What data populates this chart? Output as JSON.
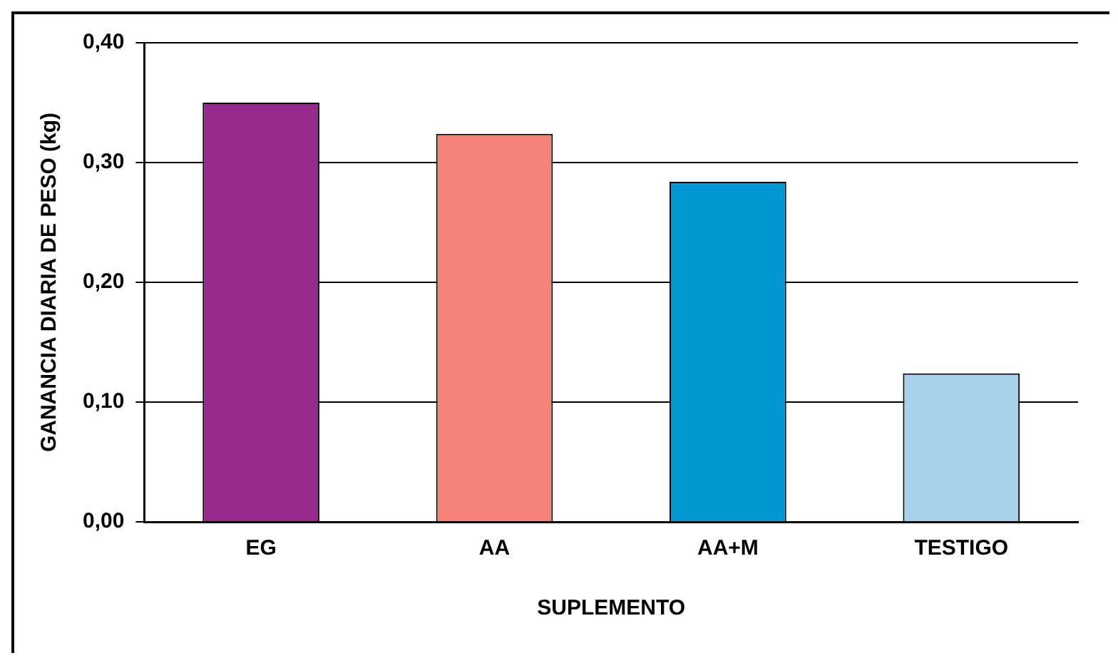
{
  "chart_data": {
    "type": "bar",
    "xlabel": "SUPLEMENTO",
    "ylabel": "GANANCIA DIARIA DE PESO (kg)",
    "categories": [
      "EG",
      "AA",
      "AA+M",
      "TESTIGO"
    ],
    "values": [
      0.35,
      0.324,
      0.284,
      0.124
    ],
    "colors": [
      "#952a8b",
      "#f4837a",
      "#0097d3",
      "#a9d1ea"
    ],
    "ylim": [
      0,
      0.4
    ],
    "yticks": [
      {
        "value": 0,
        "label": "0,00"
      },
      {
        "value": 0.1,
        "label": "0,10"
      },
      {
        "value": 0.2,
        "label": "0,20"
      },
      {
        "value": 0.3,
        "label": "0,30"
      },
      {
        "value": 0.4,
        "label": "0,40"
      }
    ],
    "grid": "y",
    "legend": false
  }
}
